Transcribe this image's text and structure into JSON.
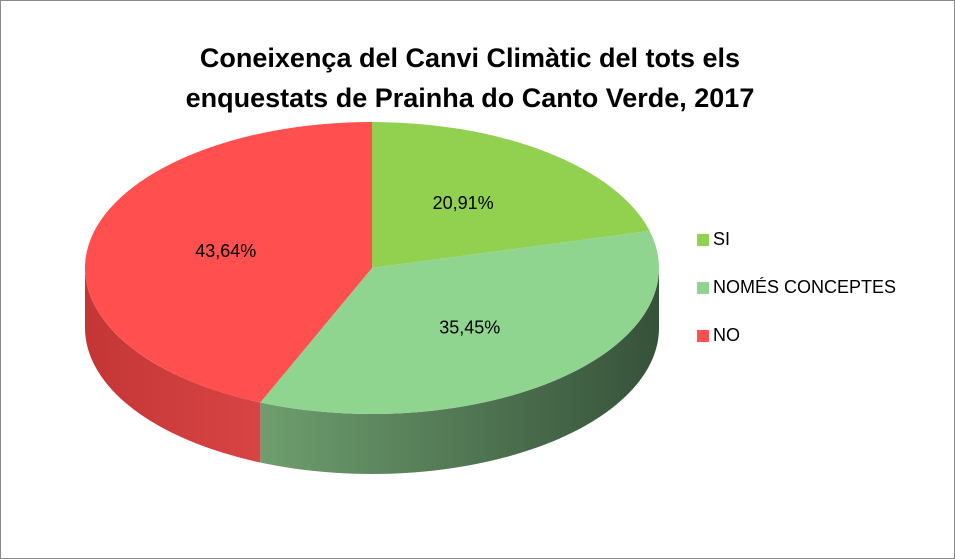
{
  "chart_data": {
    "type": "pie",
    "title": "Coneixença del Canvi Climàtic del tots els enquestats de Prainha do Canto Verde, 2017",
    "categories": [
      "SI",
      "NOMÉS CONCEPTES",
      "NO"
    ],
    "values": [
      20.91,
      35.45,
      43.64
    ],
    "value_labels": [
      "20,91%",
      "35,45%",
      "43,64%"
    ],
    "colors": [
      "#92d050",
      "#8fd48f",
      "#ff4f4f"
    ],
    "legend": "right"
  }
}
